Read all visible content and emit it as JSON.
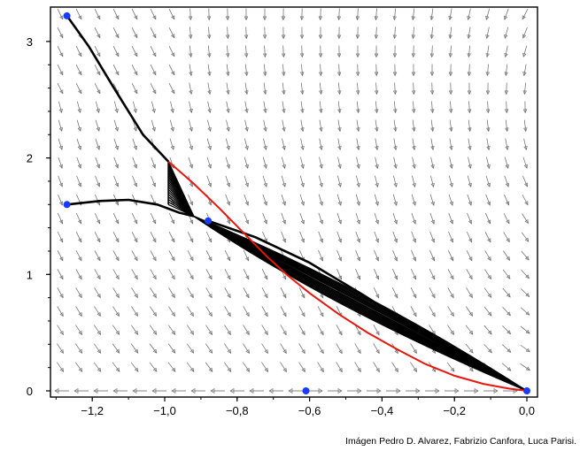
{
  "credit": "Imágen Pedro D. Alvarez, Fabrizio Canfora, Luca Parisi.",
  "chart_data": {
    "type": "phase-portrait",
    "xlim": [
      -1.3,
      0.03
    ],
    "ylim": [
      -0.02,
      3.25
    ],
    "xticks": [
      {
        "value": -1.2,
        "label": "−1,2"
      },
      {
        "value": -1.0,
        "label": "−1,0"
      },
      {
        "value": -0.8,
        "label": "−0,8"
      },
      {
        "value": -0.6,
        "label": "−0,6"
      },
      {
        "value": -0.4,
        "label": "−0,4"
      },
      {
        "value": -0.2,
        "label": "−0,2"
      },
      {
        "value": 0.0,
        "label": "0,0"
      }
    ],
    "yticks": [
      {
        "value": 0,
        "label": "0"
      },
      {
        "value": 1,
        "label": "1"
      },
      {
        "value": 2,
        "label": "2"
      },
      {
        "value": 3,
        "label": "3"
      }
    ],
    "grid": false,
    "colors": {
      "trajectory": "#000000",
      "boundary": "#e8160c",
      "points": "#1a3cff",
      "field": "#666666"
    },
    "equilibrium_points": [
      {
        "x": -1.27,
        "y": 3.22
      },
      {
        "x": -1.27,
        "y": 1.6
      },
      {
        "x": -0.88,
        "y": 1.46
      },
      {
        "x": -0.61,
        "y": 0.0
      },
      {
        "x": 0.0,
        "y": 0.0
      }
    ],
    "red_curve": [
      [
        -0.99,
        1.97
      ],
      [
        -0.92,
        1.78
      ],
      [
        -0.85,
        1.57
      ],
      [
        -0.78,
        1.35
      ],
      [
        -0.72,
        1.16
      ],
      [
        -0.66,
        0.99
      ],
      [
        -0.6,
        0.84
      ],
      [
        -0.52,
        0.66
      ],
      [
        -0.44,
        0.5
      ],
      [
        -0.36,
        0.36
      ],
      [
        -0.28,
        0.23
      ],
      [
        -0.2,
        0.13
      ],
      [
        -0.12,
        0.06
      ],
      [
        -0.05,
        0.02
      ],
      [
        0.0,
        0.0
      ]
    ],
    "trajectories": [
      [
        [
          -1.27,
          3.22
        ],
        [
          -1.21,
          2.96
        ],
        [
          -1.14,
          2.6
        ],
        [
          -1.06,
          2.2
        ],
        [
          -0.99,
          1.97
        ]
      ],
      [
        [
          -1.27,
          1.6
        ],
        [
          -1.18,
          1.63
        ],
        [
          -1.1,
          1.64
        ],
        [
          -1.02,
          1.6
        ],
        [
          -0.96,
          1.53
        ],
        [
          -0.92,
          1.5
        ]
      ],
      [
        [
          -0.88,
          1.46
        ],
        [
          -0.75,
          1.32
        ],
        [
          -0.6,
          1.1
        ],
        [
          -0.45,
          0.82
        ],
        [
          -0.3,
          0.52
        ],
        [
          -0.15,
          0.24
        ],
        [
          0.0,
          0.0
        ]
      ]
    ],
    "fan": {
      "apex": [
        -0.92,
        1.5
      ],
      "vertical_from": [
        -0.99,
        1.97
      ],
      "vertical_to": [
        -0.99,
        1.6
      ],
      "end": [
        0.0,
        0.0
      ],
      "strands": 18
    }
  }
}
